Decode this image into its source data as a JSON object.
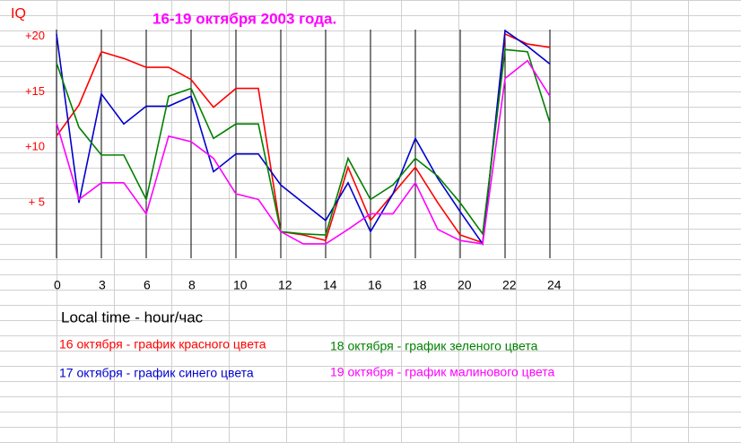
{
  "chart_data": {
    "type": "line",
    "title": "16-19 октября 2003 года.",
    "y_label": "IQ",
    "x_label": "Local time - hour/час",
    "categories": [
      "0",
      null,
      "3",
      null,
      "6",
      null,
      "8",
      null,
      "10",
      null,
      "12",
      null,
      "14",
      null,
      "16",
      null,
      "18",
      null,
      "20",
      null,
      "22",
      null,
      "24"
    ],
    "ylim": [
      0,
      20.6
    ],
    "yticks": [
      {
        "value": 20,
        "label": "+20"
      },
      {
        "value": 15,
        "label": "+15"
      },
      {
        "value": 10,
        "label": "+10"
      },
      {
        "value": 5,
        "label": "+ 5"
      }
    ],
    "series": [
      {
        "name": "16 октября - график красного цвета",
        "color": "#ff0000",
        "values": [
          11.0,
          13.8,
          18.6,
          18.0,
          17.2,
          17.2,
          16.1,
          13.6,
          15.3,
          15.3,
          2.4,
          2.1,
          1.6,
          8.2,
          3.4,
          5.8,
          8.2,
          5.0,
          2.1,
          1.4,
          20.2,
          19.3,
          19.0
        ]
      },
      {
        "name": "17 октября - график синего цвета",
        "color": "#0000cc",
        "values": [
          20.2,
          5.0,
          14.8,
          12.1,
          13.7,
          13.7,
          14.6,
          7.8,
          9.4,
          9.4,
          6.6,
          5.0,
          3.4,
          6.8,
          2.4,
          5.8,
          10.8,
          7.2,
          4.2,
          1.3,
          20.5,
          19.1,
          17.5
        ]
      },
      {
        "name": "18 октября - график  зеленого цвета",
        "color": "#008000",
        "values": [
          17.6,
          11.8,
          9.3,
          9.3,
          5.3,
          14.6,
          15.3,
          10.8,
          12.1,
          12.1,
          2.4,
          2.2,
          2.1,
          9.0,
          5.3,
          6.6,
          9.0,
          7.4,
          5.0,
          2.2,
          18.8,
          18.6,
          12.2
        ]
      },
      {
        "name": "19 октября - график малинового цвета",
        "color": "#ff00ff",
        "values": [
          12.2,
          5.3,
          6.8,
          6.8,
          4.0,
          11.0,
          10.5,
          9.0,
          5.8,
          5.3,
          2.4,
          1.3,
          1.3,
          2.6,
          4.0,
          4.0,
          6.8,
          2.6,
          1.6,
          1.3,
          16.2,
          17.8,
          14.6
        ]
      }
    ]
  }
}
